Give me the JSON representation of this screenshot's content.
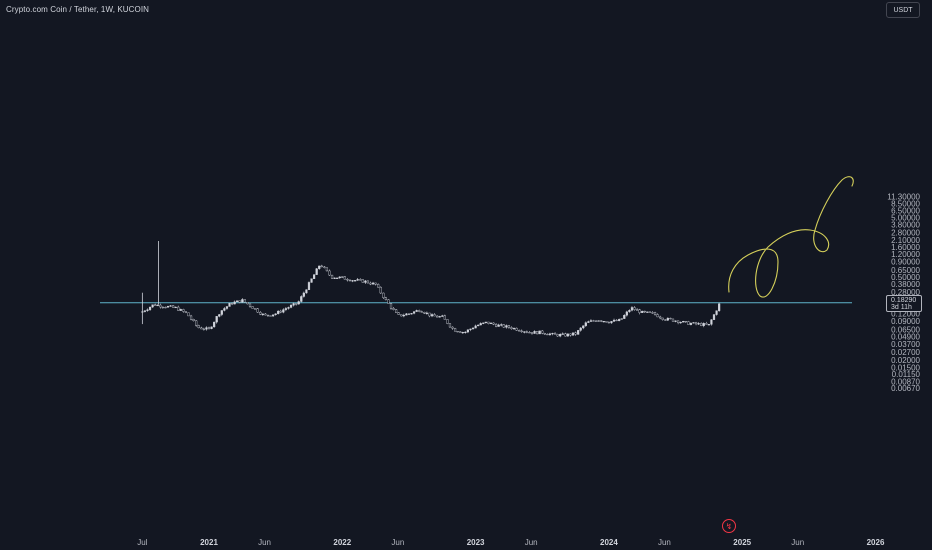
{
  "header": {
    "title": "Crypto.com Coin / Tether, 1W, KUCOIN",
    "currency": "USDT"
  },
  "price_tag": {
    "price": "0.18290",
    "countdown": "3d 11h"
  },
  "colors": {
    "background": "#131722",
    "price_line": "#5fb4c9",
    "candles": "#d1d4dc",
    "drawing": "#d4cf5a"
  },
  "icons": {
    "logo": "tradingview-logo-icon",
    "currency": "dropdown"
  },
  "chart_data": {
    "type": "candlestick",
    "scale": "log",
    "current_price": 0.1829,
    "y_ticks": [
      "11.30000",
      "8.50000",
      "6.50000",
      "5.00000",
      "3.80000",
      "2.80000",
      "2.10000",
      "1.60000",
      "1.20000",
      "0.90000",
      "0.65000",
      "0.50000",
      "0.38000",
      "0.28000",
      "0.21000",
      "0.12000",
      "0.09000",
      "0.06500",
      "0.04900",
      "0.03700",
      "0.02700",
      "0.02000",
      "0.01500",
      "0.01150",
      "0.00870",
      "0.00670"
    ],
    "x_ticks": [
      "Jul",
      "2021",
      "Jun",
      "2022",
      "Jun",
      "2023",
      "Jun",
      "2024",
      "Jun",
      "2025",
      "Jun",
      "2026"
    ],
    "closes": [
      [
        "2020-07",
        0.13
      ],
      [
        "2020-08",
        0.17
      ],
      [
        "2020-09",
        0.16
      ],
      [
        "2020-10",
        0.15
      ],
      [
        "2020-11",
        0.12
      ],
      [
        "2020-12",
        0.07
      ],
      [
        "2021-01",
        0.065
      ],
      [
        "2021-02",
        0.13
      ],
      [
        "2021-03",
        0.18
      ],
      [
        "2021-04",
        0.2
      ],
      [
        "2021-05",
        0.15
      ],
      [
        "2021-06",
        0.11
      ],
      [
        "2021-07",
        0.12
      ],
      [
        "2021-08",
        0.15
      ],
      [
        "2021-09",
        0.18
      ],
      [
        "2021-10",
        0.38
      ],
      [
        "2021-11",
        0.82
      ],
      [
        "2021-12",
        0.5
      ],
      [
        "2022-01",
        0.48
      ],
      [
        "2022-02",
        0.44
      ],
      [
        "2022-03",
        0.42
      ],
      [
        "2022-04",
        0.37
      ],
      [
        "2022-05",
        0.19
      ],
      [
        "2022-06",
        0.11
      ],
      [
        "2022-07",
        0.12
      ],
      [
        "2022-08",
        0.14
      ],
      [
        "2022-09",
        0.11
      ],
      [
        "2022-10",
        0.105
      ],
      [
        "2022-11",
        0.065
      ],
      [
        "2022-12",
        0.058
      ],
      [
        "2023-01",
        0.075
      ],
      [
        "2023-02",
        0.085
      ],
      [
        "2023-03",
        0.076
      ],
      [
        "2023-04",
        0.071
      ],
      [
        "2023-05",
        0.064
      ],
      [
        "2023-06",
        0.058
      ],
      [
        "2023-07",
        0.058
      ],
      [
        "2023-08",
        0.053
      ],
      [
        "2023-09",
        0.052
      ],
      [
        "2023-10",
        0.055
      ],
      [
        "2023-11",
        0.085
      ],
      [
        "2023-12",
        0.095
      ],
      [
        "2024-01",
        0.088
      ],
      [
        "2024-02",
        0.092
      ],
      [
        "2024-03",
        0.15
      ],
      [
        "2024-04",
        0.125
      ],
      [
        "2024-05",
        0.12
      ],
      [
        "2024-06",
        0.098
      ],
      [
        "2024-07",
        0.092
      ],
      [
        "2024-08",
        0.083
      ],
      [
        "2024-09",
        0.08
      ],
      [
        "2024-10",
        0.077
      ],
      [
        "2024-11",
        0.1829
      ]
    ],
    "drawing": "hand-drawn upward spiral projection"
  }
}
